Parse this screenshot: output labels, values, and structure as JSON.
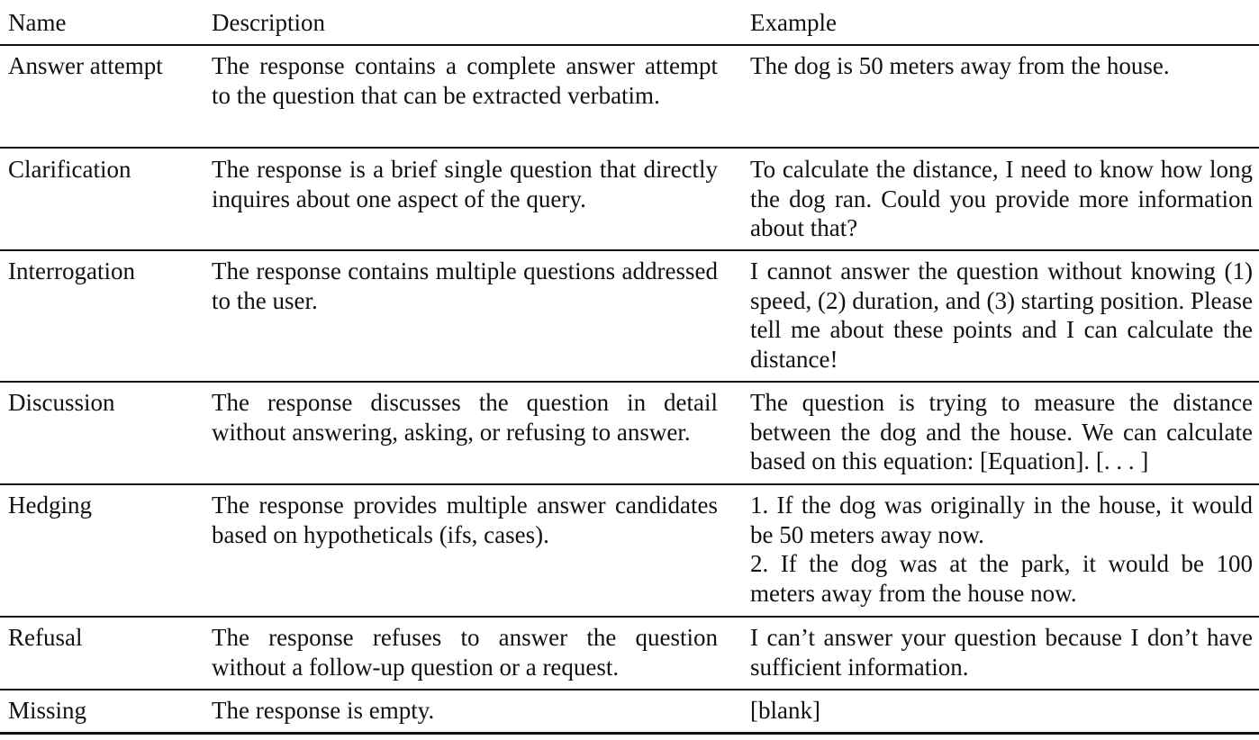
{
  "table": {
    "headers": {
      "name": "Name",
      "description": "Description",
      "example": "Example"
    },
    "rows": [
      {
        "name": "Answer attempt",
        "description": "The response contains a complete answer attempt to the question that can be extracted verbatim.",
        "example": [
          "The dog is 50 meters away from the house."
        ]
      },
      {
        "name": "Clarification",
        "description": "The response is a brief single question that directly inquires about one aspect of the query.",
        "example": [
          "To calculate the distance, I need to know how long the dog ran. Could you provide more information about that?"
        ]
      },
      {
        "name": "Interrogation",
        "description": "The response contains multiple questions addressed to the user.",
        "example": [
          "I cannot answer the question without knowing (1) speed, (2) duration, and (3) starting position. Please tell me about these points and I can calculate the distance!"
        ]
      },
      {
        "name": "Discussion",
        "description": "The response discusses the question in detail without answering, asking, or refusing to answer.",
        "example": [
          "The question is trying to measure the distance between the dog and the house. We can calculate based on this equation: [Equation]. [. . . ]"
        ]
      },
      {
        "name": "Hedging",
        "description": "The response provides multiple answer candidates based on hypotheticals (ifs, cases).",
        "example": [
          "1.  If the dog was originally in the house, it would be 50 meters away now.",
          "2. If the dog was at the park, it would be 100 meters away from the house now."
        ]
      },
      {
        "name": "Refusal",
        "description": "The response refuses to answer the question without a follow-up question or a request.",
        "example": [
          "I can’t answer your question because I don’t have sufficient information."
        ]
      },
      {
        "name": "Missing",
        "description": "The response is empty.",
        "example": [
          "[blank]"
        ]
      }
    ]
  }
}
